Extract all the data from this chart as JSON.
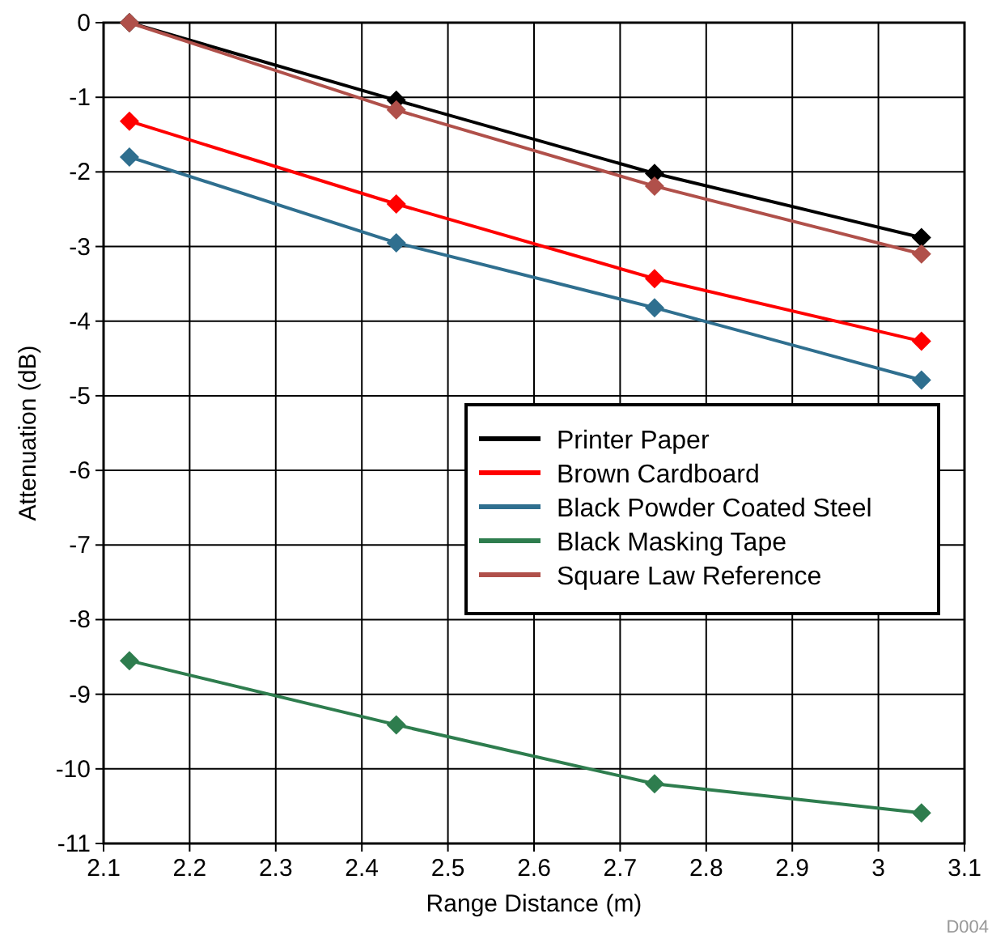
{
  "chart_data": {
    "type": "line",
    "xlabel": "Range Distance (m)",
    "ylabel": "Attenuation (dB)",
    "xlim": [
      2.1,
      3.1
    ],
    "xticks": [
      2.1,
      2.2,
      2.3,
      2.4,
      2.5,
      2.6,
      2.7,
      2.8,
      2.9,
      3,
      3.1
    ],
    "ylim": [
      -11,
      0
    ],
    "yticks": [
      -11,
      -10,
      -9,
      -8,
      -7,
      -6,
      -5,
      -4,
      -3,
      -2,
      -1,
      0
    ],
    "x": [
      2.13,
      2.44,
      2.74,
      3.05
    ],
    "grid": true,
    "legend": "right",
    "marker": "diamond",
    "line_style": "solid",
    "series": [
      {
        "name": "Printer Paper",
        "color": "#000000",
        "values": [
          0,
          -1.04,
          -2.02,
          -2.88
        ]
      },
      {
        "name": "Brown Cardboard",
        "color": "#ff0000",
        "values": [
          -1.32,
          -2.43,
          -3.43,
          -4.27
        ]
      },
      {
        "name": "Black Powder Coated Steel",
        "color": "#2f6f8f",
        "values": [
          -1.8,
          -2.95,
          -3.82,
          -4.79
        ]
      },
      {
        "name": "Black Masking Tape",
        "color": "#2e7d4e",
        "values": [
          -8.55,
          -9.41,
          -10.2,
          -10.59
        ]
      },
      {
        "name": "Square Law Reference",
        "color": "#b0504a",
        "values": [
          0,
          -1.17,
          -2.19,
          -3.1
        ]
      }
    ],
    "annotations": [
      "D004"
    ]
  }
}
